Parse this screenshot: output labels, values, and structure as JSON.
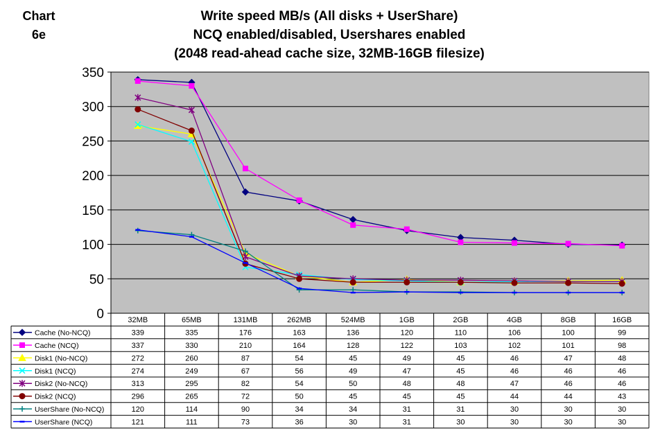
{
  "chart_label": {
    "line1": "Chart",
    "line2": "6e"
  },
  "chart_data": {
    "type": "line",
    "title_lines": [
      "Write speed MB/s  (All disks + UserShare)",
      "NCQ enabled/disabled, Usershares enabled",
      "(2048 read-ahead cache size, 32MB-16GB filesize)"
    ],
    "xlabel": "",
    "ylabel": "",
    "ylim": [
      0,
      350
    ],
    "yticks": [
      "0",
      "50",
      "100",
      "150",
      "200",
      "250",
      "300",
      "350"
    ],
    "grid": true,
    "plot_background": "#c0c0c0",
    "legend": "table below chart",
    "categories": [
      "32MB",
      "65MB",
      "131MB",
      "262MB",
      "524MB",
      "1GB",
      "2GB",
      "4GB",
      "8GB",
      "16GB"
    ],
    "series": [
      {
        "name": "Cache (No-NCQ)",
        "color": "#000080",
        "marker": "diamond",
        "values": [
          339,
          335,
          176,
          163,
          136,
          120,
          110,
          106,
          100,
          99
        ],
        "labels": [
          "339",
          "335",
          "176",
          "163",
          "136",
          "120",
          "110",
          "106",
          "100",
          "99"
        ]
      },
      {
        "name": "Cache (NCQ)",
        "color": "#ff00ff",
        "marker": "square",
        "values": [
          337,
          330,
          210,
          164,
          128,
          122,
          103,
          102,
          101,
          98
        ],
        "labels": [
          "337",
          "330",
          "210",
          "164",
          "128",
          "122",
          "103",
          "102",
          "101",
          "98"
        ]
      },
      {
        "name": "Disk1 (No-NCQ)",
        "color": "#ffff00",
        "marker": "triangle",
        "values": [
          272,
          260,
          87,
          54,
          45,
          49,
          45,
          46,
          47,
          48
        ],
        "labels": [
          "272",
          "260",
          "87",
          "54",
          "45",
          "49",
          "45",
          "46",
          "47",
          "48"
        ]
      },
      {
        "name": "Disk1 (NCQ)",
        "color": "#00ffff",
        "marker": "x",
        "values": [
          274,
          249,
          67,
          56,
          49,
          47,
          45,
          46,
          46,
          46
        ],
        "labels": [
          "274",
          "249",
          "67",
          "56",
          "49",
          "47",
          "45",
          "46",
          "46",
          "46"
        ]
      },
      {
        "name": "Disk2 (No-NCQ)",
        "color": "#800080",
        "marker": "star",
        "values": [
          313,
          295,
          82,
          54,
          50,
          48,
          48,
          47,
          46,
          46
        ],
        "labels": [
          "313",
          "295",
          "82",
          "54",
          "50",
          "48",
          "48",
          "47",
          "46",
          "46"
        ]
      },
      {
        "name": "Disk2 (NCQ)",
        "color": "#800000",
        "marker": "circle",
        "values": [
          296,
          265,
          72,
          50,
          45,
          45,
          45,
          44,
          44,
          43
        ],
        "labels": [
          "296",
          "265",
          "72",
          "50",
          "45",
          "45",
          "45",
          "44",
          "44",
          "43"
        ]
      },
      {
        "name": "UserShare (No-NCQ)",
        "color": "#008080",
        "marker": "plus",
        "values": [
          120,
          114,
          90,
          34,
          34,
          31,
          31,
          30,
          30,
          30
        ],
        "labels": [
          "120",
          "114",
          "90",
          "34",
          "34",
          "31",
          "31",
          "30",
          "30",
          "30"
        ]
      },
      {
        "name": "UserShare (NCQ)",
        "color": "#0000ff",
        "marker": "dash",
        "values": [
          121,
          111,
          73,
          36,
          30,
          31,
          30,
          30,
          30,
          30
        ],
        "labels": [
          "121",
          "111",
          "73",
          "36",
          "30",
          "31",
          "30",
          "30",
          "30",
          "30"
        ]
      }
    ]
  }
}
